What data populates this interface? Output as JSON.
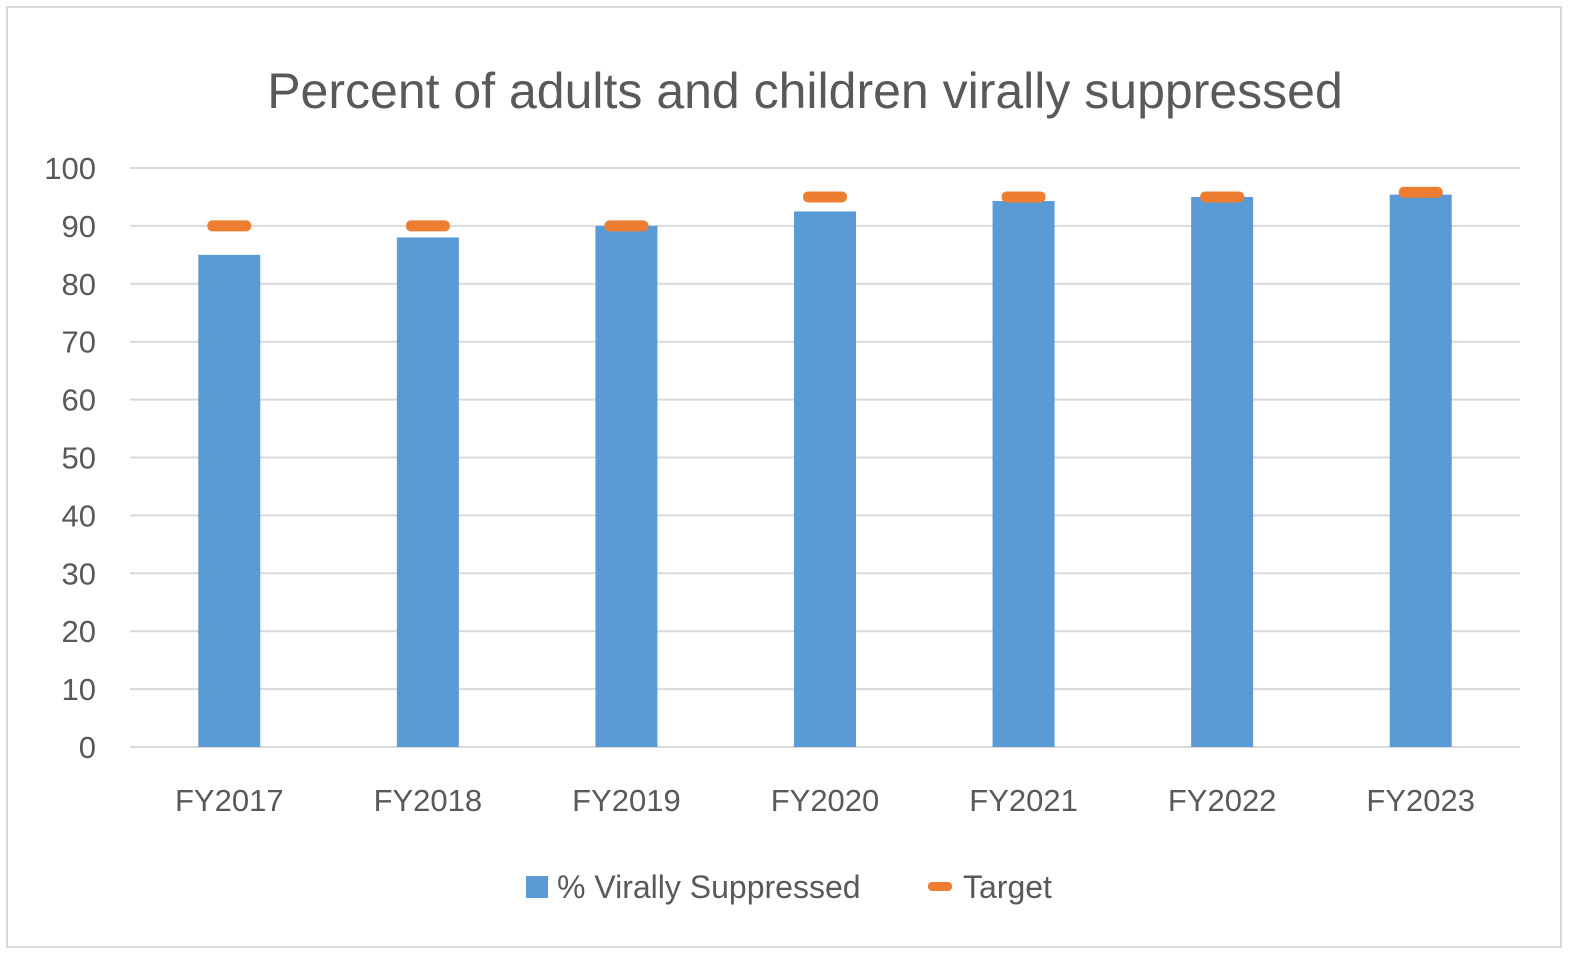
{
  "chart_data": {
    "type": "bar",
    "title": "Percent of adults and children virally suppressed",
    "categories": [
      "FY2017",
      "FY2018",
      "FY2019",
      "FY2020",
      "FY2021",
      "FY2022",
      "FY2023"
    ],
    "series": [
      {
        "name": "% Virally Suppressed",
        "kind": "bar",
        "color": "#5b9bd5",
        "values": [
          85,
          88,
          90,
          92.5,
          94.3,
          95,
          95.4
        ]
      },
      {
        "name": "Target",
        "kind": "marker",
        "color": "#ed7d31",
        "values": [
          90,
          90,
          90,
          95,
          95,
          95,
          95.8
        ]
      }
    ],
    "ylim": [
      0,
      100
    ],
    "yticks": [
      0,
      10,
      20,
      30,
      40,
      50,
      60,
      70,
      80,
      90,
      100
    ],
    "xlabel": "",
    "ylabel": "",
    "grid": true,
    "gridline_color": "#d9d9d9",
    "legend_position": "bottom-center"
  }
}
